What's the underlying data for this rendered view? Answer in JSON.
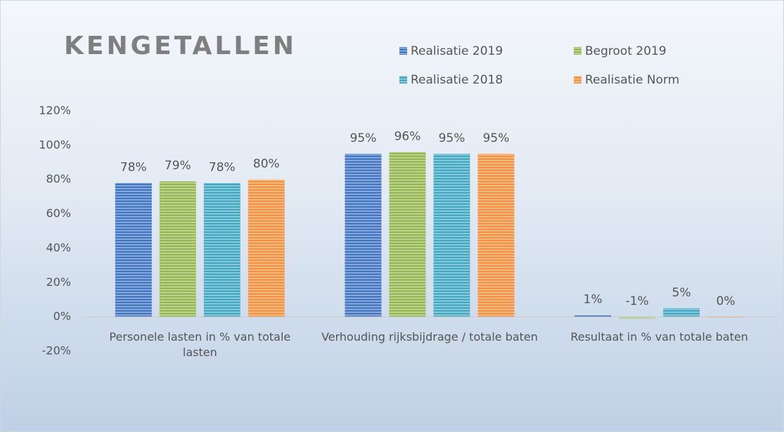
{
  "chart_data": {
    "type": "bar",
    "title": "KENGETALLEN",
    "categories": [
      "Personele lasten in % van totale lasten",
      "Verhouding rijksbijdrage / totale baten",
      "Resultaat in % van totale baten"
    ],
    "series": [
      {
        "name": "Realisatie 2019",
        "color": "#4a7cc7",
        "values": [
          78,
          95,
          1
        ],
        "value_labels": [
          "78%",
          "95%",
          "1%"
        ]
      },
      {
        "name": "Begroot 2019",
        "color": "#9bbb59",
        "values": [
          79,
          96,
          -1
        ],
        "value_labels": [
          "79%",
          "96%",
          "-1%"
        ]
      },
      {
        "name": "Realisatie 2018",
        "color": "#4bacc6",
        "values": [
          78,
          95,
          5
        ],
        "value_labels": [
          "78%",
          "95%",
          "5%"
        ]
      },
      {
        "name": "Realisatie Norm",
        "color": "#f79646",
        "values": [
          80,
          95,
          0
        ],
        "value_labels": [
          "80%",
          "95%",
          "0%"
        ]
      }
    ],
    "ylim": [
      -20,
      120
    ],
    "yticks": [
      {
        "value": -20,
        "label": "-20%"
      },
      {
        "value": 0,
        "label": "0%"
      },
      {
        "value": 20,
        "label": "20%"
      },
      {
        "value": 40,
        "label": "40%"
      },
      {
        "value": 60,
        "label": "60%"
      },
      {
        "value": 80,
        "label": "80%"
      },
      {
        "value": 100,
        "label": "100%"
      },
      {
        "value": 120,
        "label": "120%"
      }
    ],
    "grid": false
  }
}
